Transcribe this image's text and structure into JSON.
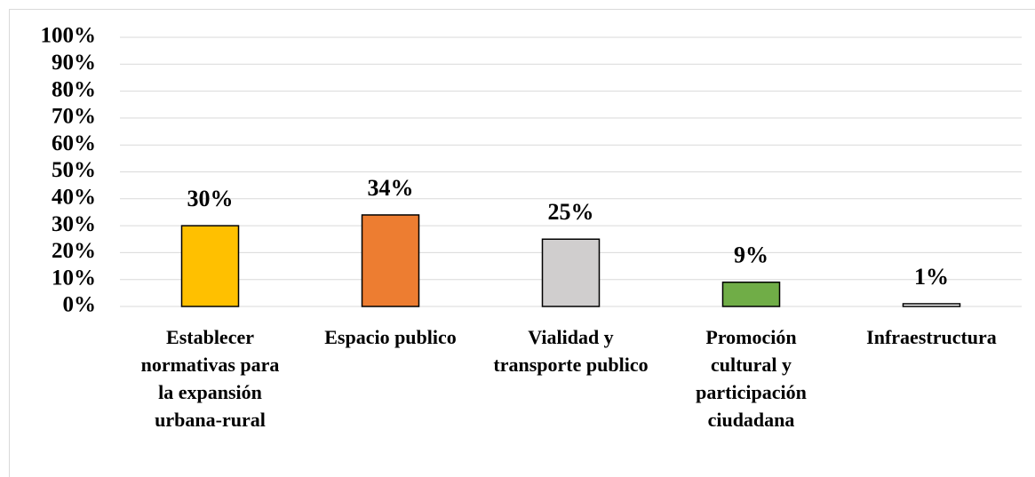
{
  "chart_data": {
    "type": "bar",
    "categories": [
      "Establecer normativas para la expansión urbana-rural",
      "Espacio publico",
      "Vialidad y transporte publico",
      "Promoción cultural y participación ciudadana",
      "Infraestructura"
    ],
    "values": [
      30,
      34,
      25,
      9,
      1
    ],
    "value_labels": [
      "30%",
      "34%",
      "25%",
      "9%",
      "1%"
    ],
    "colors": [
      "#ffc000",
      "#ed7d31",
      "#d0cece",
      "#70ad47",
      "#ffffff"
    ],
    "ylim": [
      0,
      100
    ],
    "yticks": [
      {
        "value": 0,
        "label": "0%"
      },
      {
        "value": 10,
        "label": "10%"
      },
      {
        "value": 20,
        "label": "20%"
      },
      {
        "value": 30,
        "label": "30%"
      },
      {
        "value": 40,
        "label": "40%"
      },
      {
        "value": 50,
        "label": "50%"
      },
      {
        "value": 60,
        "label": "60%"
      },
      {
        "value": 70,
        "label": "70%"
      },
      {
        "value": 80,
        "label": "80%"
      },
      {
        "value": 90,
        "label": "90%"
      },
      {
        "value": 100,
        "label": "100%"
      }
    ],
    "grid": true
  }
}
